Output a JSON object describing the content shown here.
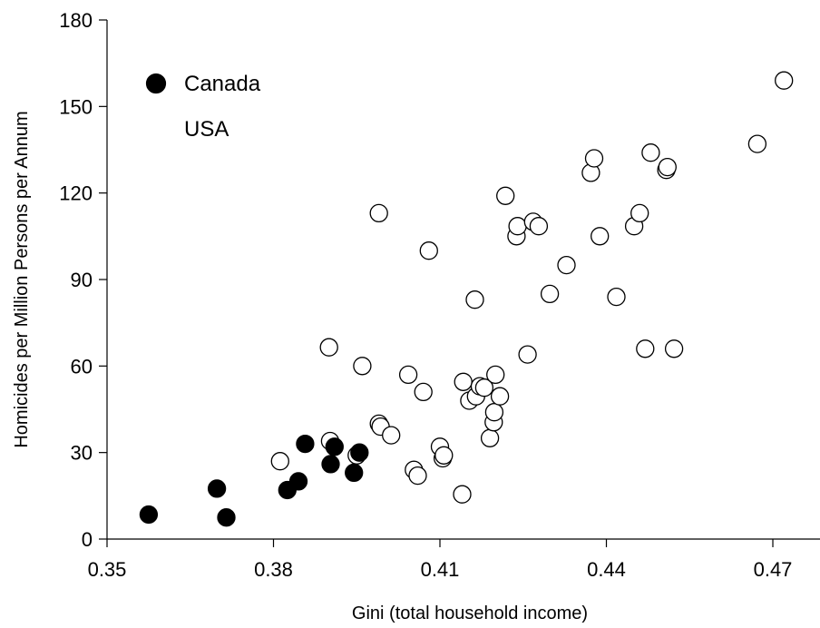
{
  "chart_data": {
    "type": "scatter",
    "xlabel": "Gini (total household income)",
    "ylabel": "Homicides per Million Persons per Annum",
    "xlim": [
      0.35,
      0.4785
    ],
    "ylim": [
      0,
      180
    ],
    "x_ticks": [
      "0.35",
      "0.38",
      "0.41",
      "0.44",
      "0.47"
    ],
    "x_tick_values": [
      0.35,
      0.38,
      0.41,
      0.44,
      0.47
    ],
    "y_ticks": [
      "0",
      "30",
      "60",
      "90",
      "120",
      "150",
      "180"
    ],
    "y_tick_values": [
      0,
      30,
      60,
      90,
      120,
      150,
      180
    ],
    "grid": false,
    "legend_position": "top-left",
    "series": [
      {
        "name": "Canada",
        "marker": "filled-circle",
        "color": "#000000",
        "points": [
          [
            0.3575,
            8.5
          ],
          [
            0.3698,
            17.5
          ],
          [
            0.3715,
            7.5
          ],
          [
            0.3825,
            17.0
          ],
          [
            0.3845,
            20.0
          ],
          [
            0.3857,
            33.0
          ],
          [
            0.3903,
            26.0
          ],
          [
            0.391,
            32.0
          ],
          [
            0.3945,
            23.0
          ],
          [
            0.3955,
            30.0
          ]
        ]
      },
      {
        "name": "USA",
        "marker": "open-circle",
        "color": "#000000",
        "points": [
          [
            0.3812,
            27
          ],
          [
            0.3902,
            34
          ],
          [
            0.39,
            66.5
          ],
          [
            0.395,
            29
          ],
          [
            0.396,
            60
          ],
          [
            0.399,
            113
          ],
          [
            0.399,
            40
          ],
          [
            0.3993,
            39
          ],
          [
            0.4012,
            36
          ],
          [
            0.4043,
            57
          ],
          [
            0.4053,
            24
          ],
          [
            0.406,
            22
          ],
          [
            0.407,
            51
          ],
          [
            0.408,
            100
          ],
          [
            0.41,
            32
          ],
          [
            0.4105,
            28
          ],
          [
            0.4107,
            29
          ],
          [
            0.414,
            15.5
          ],
          [
            0.4142,
            54.5
          ],
          [
            0.4153,
            48
          ],
          [
            0.4163,
            83
          ],
          [
            0.4165,
            49.5
          ],
          [
            0.4172,
            53
          ],
          [
            0.418,
            52.5
          ],
          [
            0.419,
            35
          ],
          [
            0.4197,
            40.5
          ],
          [
            0.4198,
            44
          ],
          [
            0.42,
            57
          ],
          [
            0.4208,
            49.5
          ],
          [
            0.4218,
            119
          ],
          [
            0.4238,
            105
          ],
          [
            0.424,
            108.5
          ],
          [
            0.4258,
            64
          ],
          [
            0.4268,
            110
          ],
          [
            0.4278,
            108.5
          ],
          [
            0.4328,
            95
          ],
          [
            0.4298,
            85
          ],
          [
            0.4372,
            127
          ],
          [
            0.4378,
            132
          ],
          [
            0.4388,
            105
          ],
          [
            0.4418,
            84
          ],
          [
            0.445,
            108.5
          ],
          [
            0.446,
            113
          ],
          [
            0.447,
            66
          ],
          [
            0.448,
            134
          ],
          [
            0.4508,
            128
          ],
          [
            0.451,
            129
          ],
          [
            0.4522,
            66
          ],
          [
            0.4672,
            137
          ],
          [
            0.472,
            159
          ]
        ]
      }
    ]
  }
}
